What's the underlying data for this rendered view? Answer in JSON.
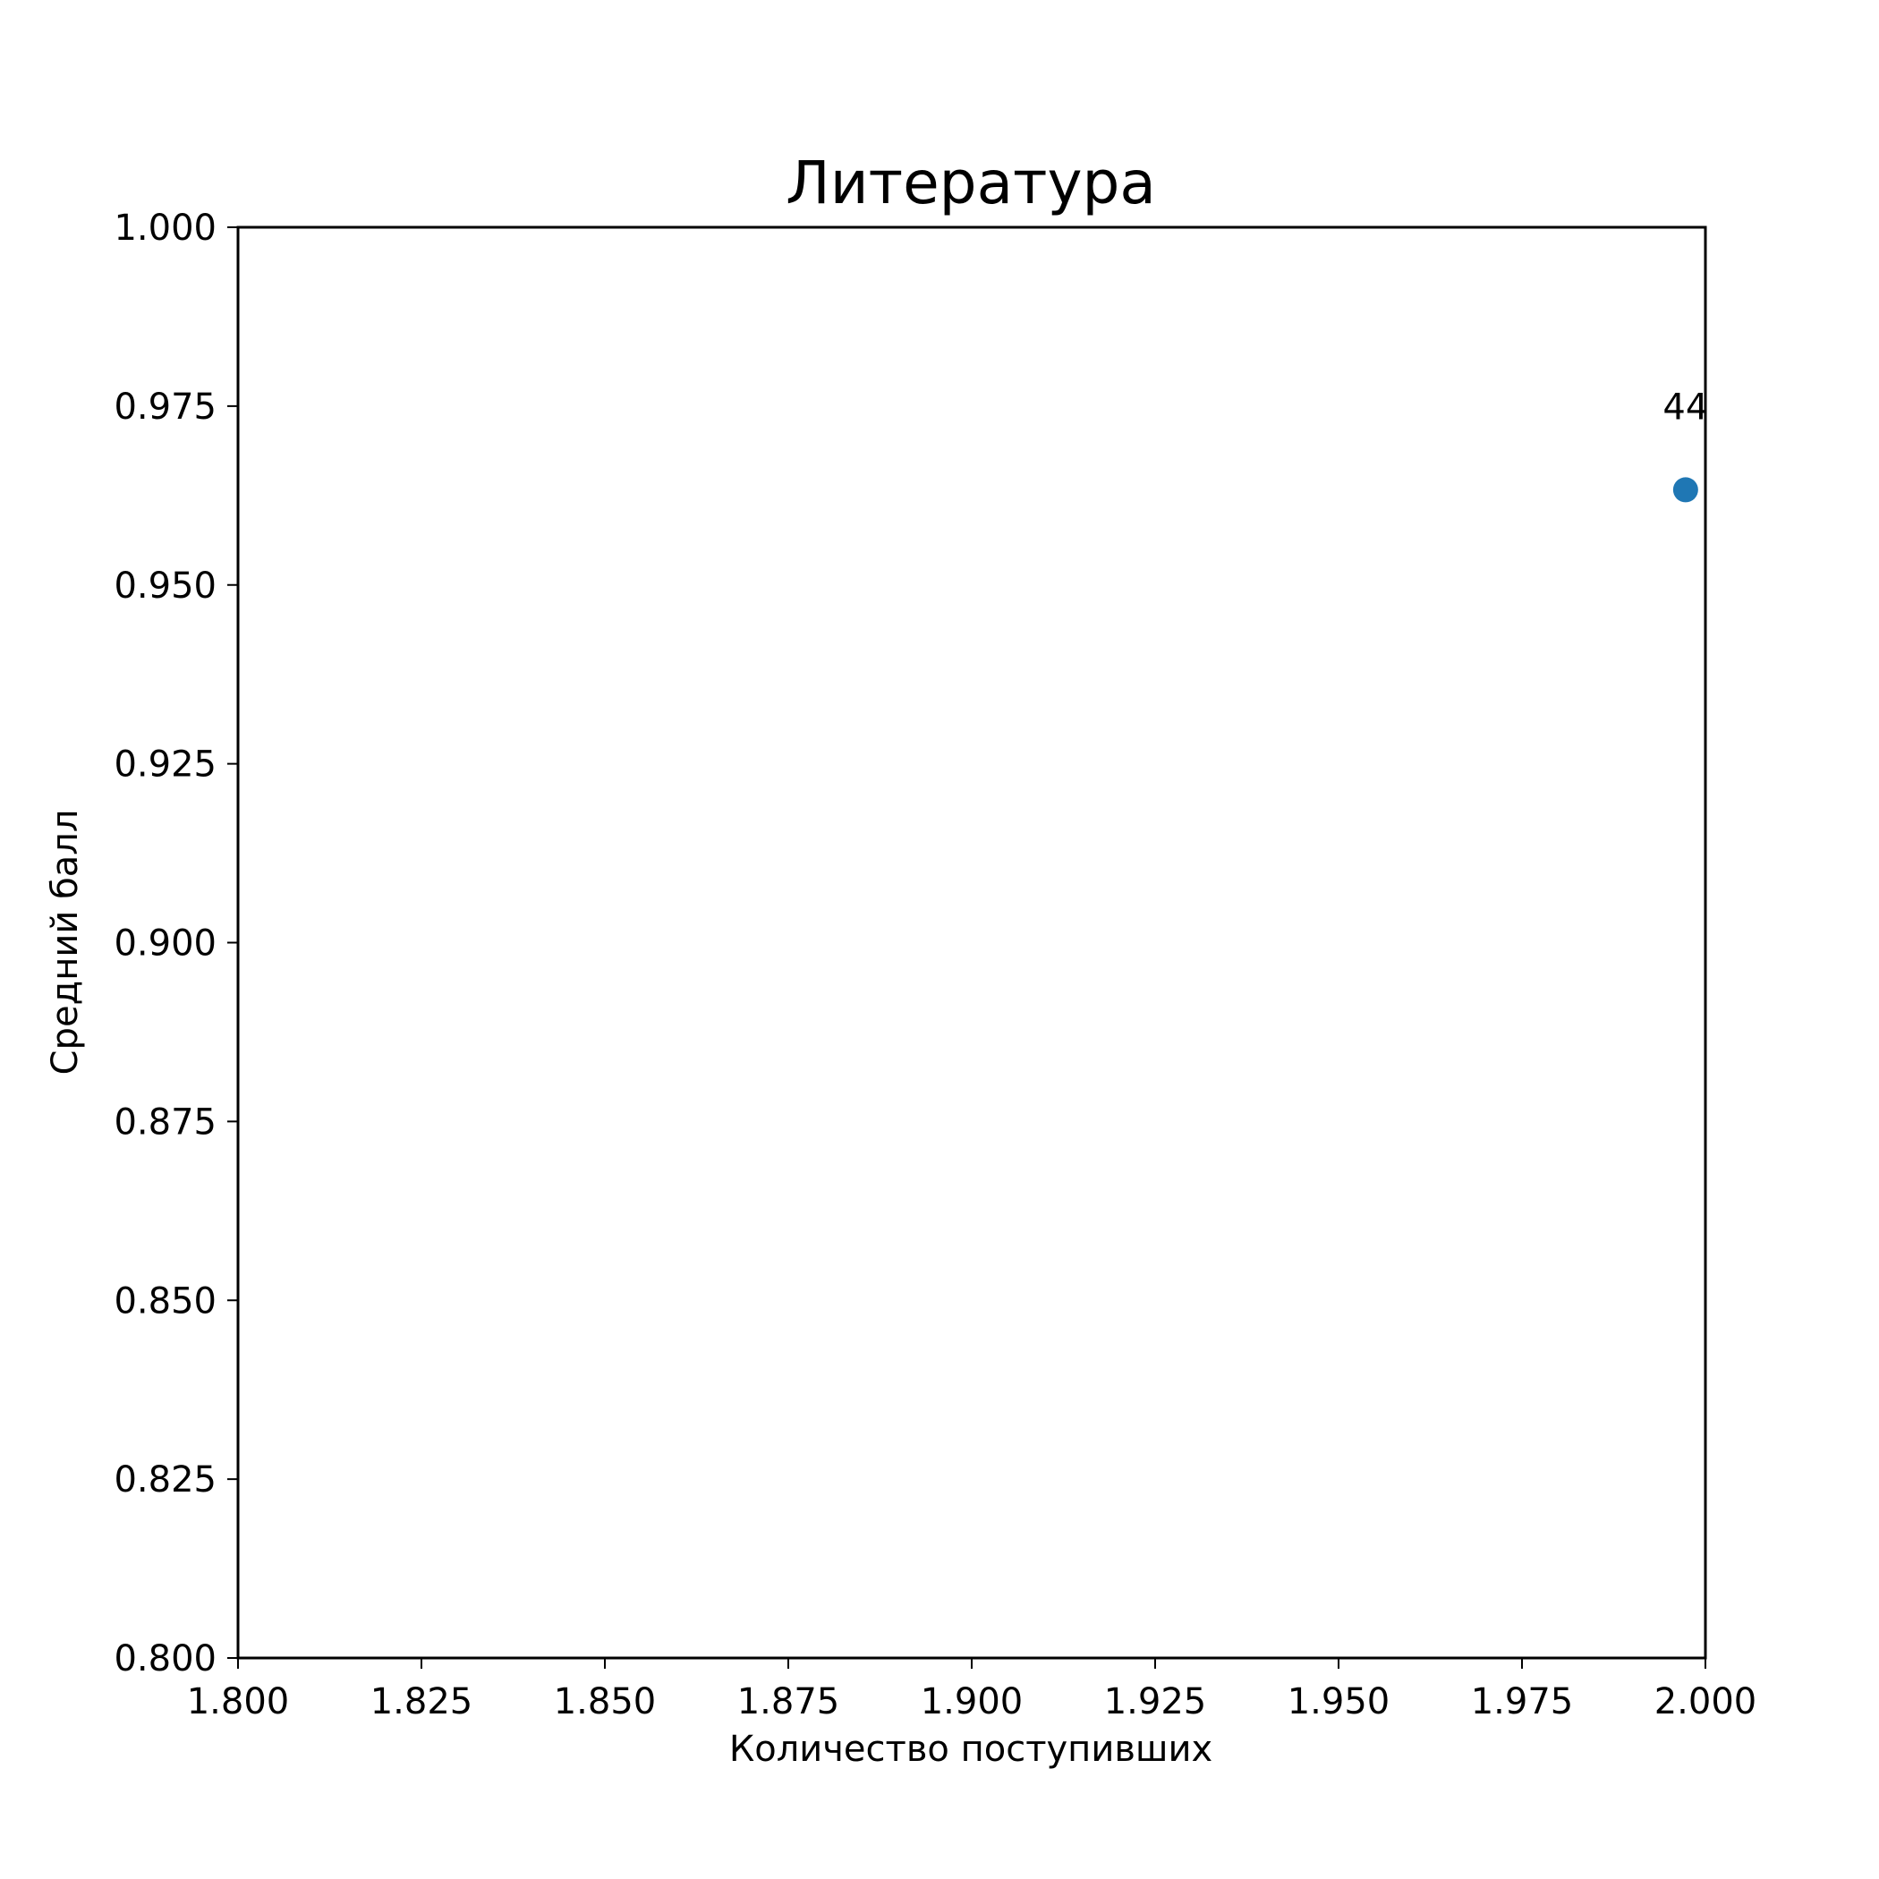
{
  "chart_data": {
    "type": "scatter",
    "title": "Литература",
    "xlabel": "Количество поступивших",
    "ylabel": "Средний балл",
    "xlim": [
      1.8,
      2.0
    ],
    "ylim": [
      0.8,
      1.0
    ],
    "x_ticks": [
      1.8,
      1.825,
      1.85,
      1.875,
      1.9,
      1.925,
      1.95,
      1.975,
      2.0
    ],
    "x_tick_labels": [
      "1.800",
      "1.825",
      "1.850",
      "1.875",
      "1.900",
      "1.925",
      "1.950",
      "1.975",
      "2.000"
    ],
    "y_ticks": [
      0.8,
      0.825,
      0.85,
      0.875,
      0.9,
      0.925,
      0.95,
      0.975,
      1.0
    ],
    "y_tick_labels": [
      "0.800",
      "0.825",
      "0.850",
      "0.875",
      "0.900",
      "0.925",
      "0.950",
      "0.975",
      "1.000"
    ],
    "grid": false,
    "points": [
      {
        "x": 1.9973,
        "y": 0.9633,
        "label": "44"
      }
    ],
    "marker_color": "#1f77b4"
  }
}
